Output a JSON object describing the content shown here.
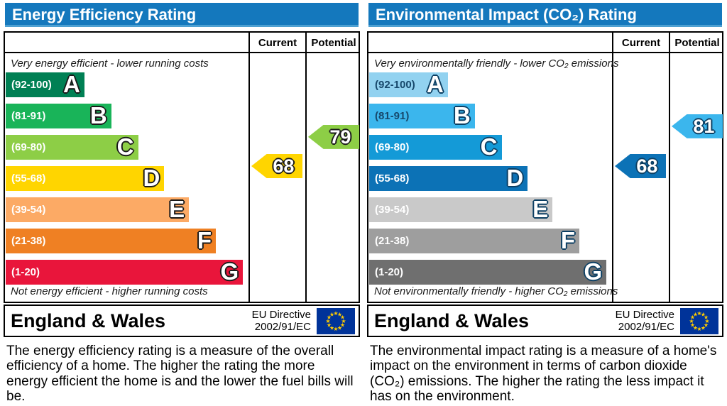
{
  "eu_flag": {
    "bg": "#003399",
    "star": "#ffcc00"
  },
  "chart_data": [
    {
      "type": "bar",
      "title": "Energy Efficiency Rating",
      "header_bg": "#1478bd",
      "outline": "#1a1a1a",
      "columns": [
        "Current",
        "Potential"
      ],
      "top_caption": "Very energy efficient - lower running costs",
      "bottom_caption": "Not energy efficient - higher running costs",
      "bands": [
        {
          "letter": "A",
          "label": "(92-100)",
          "min": 92,
          "max": 100,
          "color": "#008054",
          "label_color": "#ffffff",
          "width_pct": 32.5
        },
        {
          "letter": "B",
          "label": "(81-91)",
          "min": 81,
          "max": 91,
          "color": "#19b459",
          "label_color": "#ffffff",
          "width_pct": 43.6
        },
        {
          "letter": "C",
          "label": "(69-80)",
          "min": 69,
          "max": 80,
          "color": "#8dce46",
          "label_color": "#ffffff",
          "width_pct": 54.7
        },
        {
          "letter": "D",
          "label": "(55-68)",
          "min": 55,
          "max": 68,
          "color": "#ffd500",
          "label_color": "#ffffff",
          "width_pct": 65.5
        },
        {
          "letter": "E",
          "label": "(39-54)",
          "min": 39,
          "max": 54,
          "color": "#fcaa65",
          "label_color": "#ffffff",
          "width_pct": 75.7
        },
        {
          "letter": "F",
          "label": "(21-38)",
          "min": 21,
          "max": 38,
          "color": "#ef8023",
          "label_color": "#ffffff",
          "width_pct": 86.8
        },
        {
          "letter": "G",
          "label": "(1-20)",
          "min": 1,
          "max": 20,
          "color": "#e9153b",
          "label_color": "#ffffff",
          "width_pct": 98.0
        }
      ],
      "current": {
        "value": 68,
        "color": "#ffd500"
      },
      "potential": {
        "value": 79,
        "color": "#8dce46"
      },
      "footer": {
        "region": "England & Wales",
        "directive_line1": "EU Directive",
        "directive_line2": "2002/91/EC"
      },
      "description": "The energy efficiency rating is a measure of the overall efficiency of a home. The higher the rating the more energy efficient the home is and the lower the fuel bills will be."
    },
    {
      "type": "bar",
      "title": "Environmental Impact (CO₂) Rating",
      "header_bg": "#1478bd",
      "outline": "#0c3f63",
      "columns": [
        "Current",
        "Potential"
      ],
      "top_caption": "Very environmentally friendly - lower CO₂ emissions",
      "bottom_caption": "Not environmentally friendly - higher CO₂ emissions",
      "bands": [
        {
          "letter": "A",
          "label": "(92-100)",
          "min": 92,
          "max": 100,
          "color": "#92d2f0",
          "label_color": "#17486b",
          "width_pct": 32.5
        },
        {
          "letter": "B",
          "label": "(81-91)",
          "min": 81,
          "max": 91,
          "color": "#3bb6ed",
          "label_color": "#17486b",
          "width_pct": 43.6
        },
        {
          "letter": "C",
          "label": "(69-80)",
          "min": 69,
          "max": 80,
          "color": "#149ad7",
          "label_color": "#ffffff",
          "width_pct": 54.7
        },
        {
          "letter": "D",
          "label": "(55-68)",
          "min": 55,
          "max": 68,
          "color": "#0c72b6",
          "label_color": "#ffffff",
          "width_pct": 65.5
        },
        {
          "letter": "E",
          "label": "(39-54)",
          "min": 39,
          "max": 54,
          "color": "#c9c9c9",
          "label_color": "#ffffff",
          "width_pct": 75.7
        },
        {
          "letter": "F",
          "label": "(21-38)",
          "min": 21,
          "max": 38,
          "color": "#9e9e9e",
          "label_color": "#ffffff",
          "width_pct": 86.8
        },
        {
          "letter": "G",
          "label": "(1-20)",
          "min": 1,
          "max": 20,
          "color": "#6f6f6f",
          "label_color": "#ffffff",
          "width_pct": 98.0
        }
      ],
      "current": {
        "value": 68,
        "color": "#0c72b6"
      },
      "potential": {
        "value": 81,
        "color": "#3bb6ed"
      },
      "footer": {
        "region": "England & Wales",
        "directive_line1": "EU Directive",
        "directive_line2": "2002/91/EC"
      },
      "description": "The environmental impact rating is a measure of a home's impact on the environment in terms of carbon dioxide (CO₂) emissions. The higher the rating the less impact it has on the environment."
    }
  ]
}
